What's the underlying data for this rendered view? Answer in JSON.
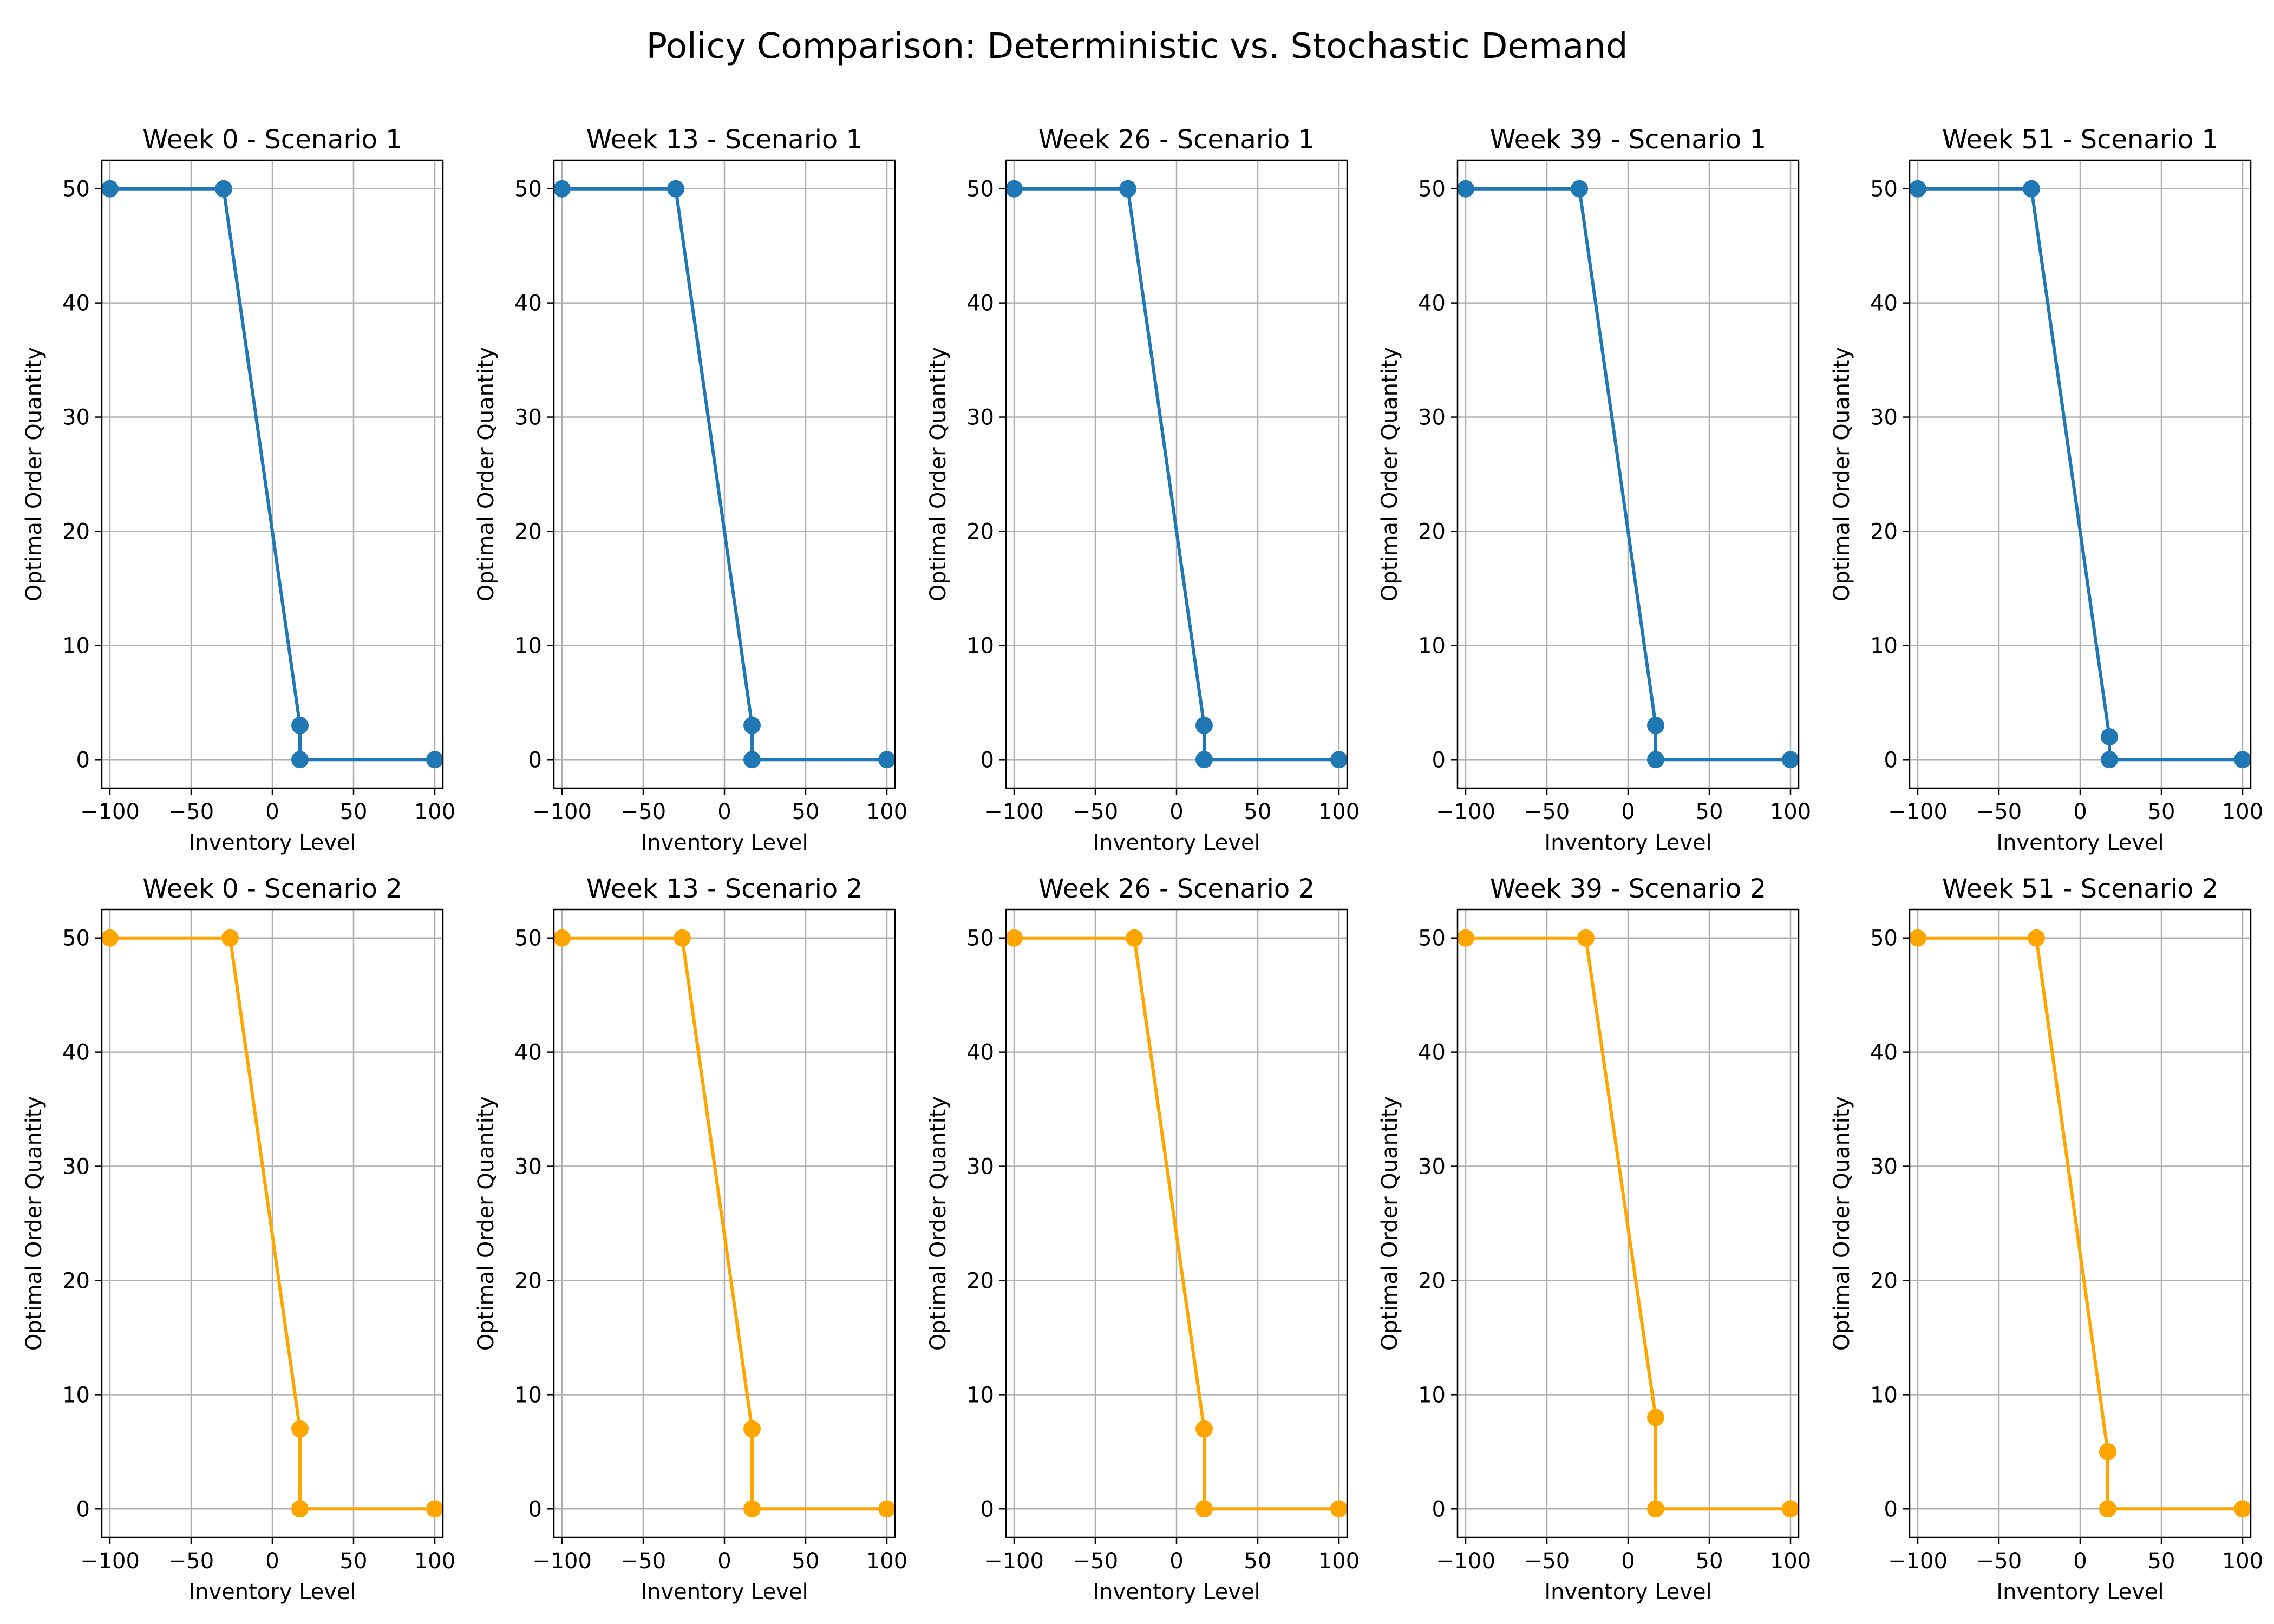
{
  "figure": {
    "title": "Policy Comparison: Deterministic vs. Stochastic Demand"
  },
  "scenario_colors": {
    "Scenario 1": "#1f77b4",
    "Scenario 2": "#ffa500"
  },
  "chart_data": [
    {
      "type": "line",
      "title": "Week 0 - Scenario 1",
      "xlabel": "Inventory Level",
      "ylabel": "Optimal Order Quantity",
      "xlim": [
        -105,
        105
      ],
      "ylim": [
        -2.5,
        52.5
      ],
      "xticks": [
        -100,
        -50,
        0,
        50,
        100
      ],
      "yticks": [
        0,
        10,
        20,
        30,
        40,
        50
      ],
      "grid": true,
      "color": "#1f77b4",
      "marker": "circle",
      "series": [
        {
          "x": [
            -100,
            -30,
            17,
            17,
            100
          ],
          "y": [
            50,
            50,
            3,
            0,
            0
          ]
        }
      ]
    },
    {
      "type": "line",
      "title": "Week 13 - Scenario 1",
      "xlabel": "Inventory Level",
      "ylabel": "Optimal Order Quantity",
      "xlim": [
        -105,
        105
      ],
      "ylim": [
        -2.5,
        52.5
      ],
      "xticks": [
        -100,
        -50,
        0,
        50,
        100
      ],
      "yticks": [
        0,
        10,
        20,
        30,
        40,
        50
      ],
      "grid": true,
      "color": "#1f77b4",
      "marker": "circle",
      "series": [
        {
          "x": [
            -100,
            -30,
            17,
            17,
            100
          ],
          "y": [
            50,
            50,
            3,
            0,
            0
          ]
        }
      ]
    },
    {
      "type": "line",
      "title": "Week 26 - Scenario 1",
      "xlabel": "Inventory Level",
      "ylabel": "Optimal Order Quantity",
      "xlim": [
        -105,
        105
      ],
      "ylim": [
        -2.5,
        52.5
      ],
      "xticks": [
        -100,
        -50,
        0,
        50,
        100
      ],
      "yticks": [
        0,
        10,
        20,
        30,
        40,
        50
      ],
      "grid": true,
      "color": "#1f77b4",
      "marker": "circle",
      "series": [
        {
          "x": [
            -100,
            -30,
            17,
            17,
            100
          ],
          "y": [
            50,
            50,
            3,
            0,
            0
          ]
        }
      ]
    },
    {
      "type": "line",
      "title": "Week 39 - Scenario 1",
      "xlabel": "Inventory Level",
      "ylabel": "Optimal Order Quantity",
      "xlim": [
        -105,
        105
      ],
      "ylim": [
        -2.5,
        52.5
      ],
      "xticks": [
        -100,
        -50,
        0,
        50,
        100
      ],
      "yticks": [
        0,
        10,
        20,
        30,
        40,
        50
      ],
      "grid": true,
      "color": "#1f77b4",
      "marker": "circle",
      "series": [
        {
          "x": [
            -100,
            -30,
            17,
            17,
            100
          ],
          "y": [
            50,
            50,
            3,
            0,
            0
          ]
        }
      ]
    },
    {
      "type": "line",
      "title": "Week 51 - Scenario 1",
      "xlabel": "Inventory Level",
      "ylabel": "Optimal Order Quantity",
      "xlim": [
        -105,
        105
      ],
      "ylim": [
        -2.5,
        52.5
      ],
      "xticks": [
        -100,
        -50,
        0,
        50,
        100
      ],
      "yticks": [
        0,
        10,
        20,
        30,
        40,
        50
      ],
      "grid": true,
      "color": "#1f77b4",
      "marker": "circle",
      "series": [
        {
          "x": [
            -100,
            -30,
            18,
            18,
            100
          ],
          "y": [
            50,
            50,
            2,
            0,
            0
          ]
        }
      ]
    },
    {
      "type": "line",
      "title": "Week 0 - Scenario 2",
      "xlabel": "Inventory Level",
      "ylabel": "Optimal Order Quantity",
      "xlim": [
        -105,
        105
      ],
      "ylim": [
        -2.5,
        52.5
      ],
      "xticks": [
        -100,
        -50,
        0,
        50,
        100
      ],
      "yticks": [
        0,
        10,
        20,
        30,
        40,
        50
      ],
      "grid": true,
      "color": "#ffa500",
      "marker": "circle",
      "series": [
        {
          "x": [
            -100,
            -26,
            17,
            17,
            100
          ],
          "y": [
            50,
            50,
            7,
            0,
            0
          ]
        }
      ]
    },
    {
      "type": "line",
      "title": "Week 13 - Scenario 2",
      "xlabel": "Inventory Level",
      "ylabel": "Optimal Order Quantity",
      "xlim": [
        -105,
        105
      ],
      "ylim": [
        -2.5,
        52.5
      ],
      "xticks": [
        -100,
        -50,
        0,
        50,
        100
      ],
      "yticks": [
        0,
        10,
        20,
        30,
        40,
        50
      ],
      "grid": true,
      "color": "#ffa500",
      "marker": "circle",
      "series": [
        {
          "x": [
            -100,
            -26,
            17,
            17,
            100
          ],
          "y": [
            50,
            50,
            7,
            0,
            0
          ]
        }
      ]
    },
    {
      "type": "line",
      "title": "Week 26 - Scenario 2",
      "xlabel": "Inventory Level",
      "ylabel": "Optimal Order Quantity",
      "xlim": [
        -105,
        105
      ],
      "ylim": [
        -2.5,
        52.5
      ],
      "xticks": [
        -100,
        -50,
        0,
        50,
        100
      ],
      "yticks": [
        0,
        10,
        20,
        30,
        40,
        50
      ],
      "grid": true,
      "color": "#ffa500",
      "marker": "circle",
      "series": [
        {
          "x": [
            -100,
            -26,
            17,
            17,
            100
          ],
          "y": [
            50,
            50,
            7,
            0,
            0
          ]
        }
      ]
    },
    {
      "type": "line",
      "title": "Week 39 - Scenario 2",
      "xlabel": "Inventory Level",
      "ylabel": "Optimal Order Quantity",
      "xlim": [
        -105,
        105
      ],
      "ylim": [
        -2.5,
        52.5
      ],
      "xticks": [
        -100,
        -50,
        0,
        50,
        100
      ],
      "yticks": [
        0,
        10,
        20,
        30,
        40,
        50
      ],
      "grid": true,
      "color": "#ffa500",
      "marker": "circle",
      "series": [
        {
          "x": [
            -100,
            -26,
            17,
            17,
            100
          ],
          "y": [
            50,
            50,
            8,
            0,
            0
          ]
        }
      ]
    },
    {
      "type": "line",
      "title": "Week 51 - Scenario 2",
      "xlabel": "Inventory Level",
      "ylabel": "Optimal Order Quantity",
      "xlim": [
        -105,
        105
      ],
      "ylim": [
        -2.5,
        52.5
      ],
      "xticks": [
        -100,
        -50,
        0,
        50,
        100
      ],
      "yticks": [
        0,
        10,
        20,
        30,
        40,
        50
      ],
      "grid": true,
      "color": "#ffa500",
      "marker": "circle",
      "series": [
        {
          "x": [
            -100,
            -27,
            17,
            17,
            100
          ],
          "y": [
            50,
            50,
            5,
            0,
            0
          ]
        }
      ]
    }
  ]
}
